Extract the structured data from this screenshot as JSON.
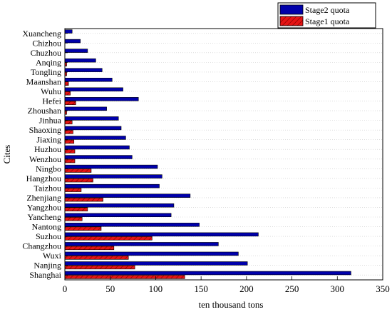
{
  "chart_data": {
    "type": "bar",
    "orientation": "horizontal",
    "title": "",
    "xlabel": "ten thousand tons",
    "ylabel": "Cites",
    "xlim": [
      0,
      350
    ],
    "xticks": [
      "0",
      "50",
      "100",
      "150",
      "200",
      "250",
      "300",
      "350"
    ],
    "grid": true,
    "legend_position": "top-right",
    "categories": [
      "Xuancheng",
      "Chizhou",
      "Chuzhou",
      "Anqing",
      "Tongling",
      "Maanshan",
      "Wuhu",
      "Hefei",
      "Zhoushan",
      "Jinhua",
      "Shaoxing",
      "Jiaxing",
      "Huzhou",
      "Wenzhou",
      "Ningbo",
      "Hangzhou",
      "Taizhou",
      "Zhenjiang",
      "Yangzhou",
      "Yancheng",
      "Nantong",
      "Suzhou",
      "Changzhou",
      "Wuxi",
      "Nanjing",
      "Shanghai"
    ],
    "series": [
      {
        "name": "Stage2 quota",
        "color": "#0000aa",
        "pattern": "solid",
        "values": [
          8,
          17,
          25,
          34,
          41,
          52,
          64,
          81,
          46,
          59,
          62,
          67,
          71,
          74,
          102,
          107,
          104,
          138,
          120,
          117,
          148,
          213,
          169,
          191,
          201,
          315
        ]
      },
      {
        "name": "Stage1 quota",
        "color": "#dd1111",
        "pattern": "hatched",
        "values": [
          0,
          0,
          0,
          2,
          2,
          4,
          6,
          12,
          2,
          8,
          9,
          10,
          11,
          11,
          29,
          31,
          18,
          42,
          25,
          19,
          40,
          96,
          54,
          70,
          77,
          132
        ]
      }
    ]
  }
}
